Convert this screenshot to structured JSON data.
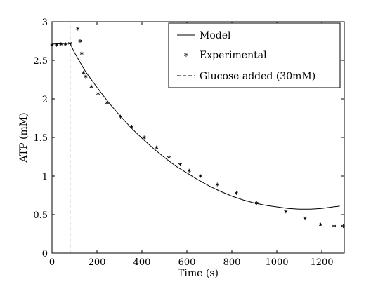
{
  "chart_data": {
    "type": "line",
    "xlabel": "Time (s)",
    "ylabel": "ATP (mM)",
    "xlim": [
      0,
      1300
    ],
    "ylim": [
      0,
      3
    ],
    "xticks": [
      0,
      200,
      400,
      600,
      800,
      1000,
      1200
    ],
    "yticks": [
      0,
      0.5,
      1,
      1.5,
      2,
      2.5,
      3
    ],
    "xtick_labels": [
      "0",
      "200",
      "400",
      "600",
      "800",
      "1000",
      "1200"
    ],
    "ytick_labels": [
      "0",
      "0.5",
      "1",
      "1.5",
      "2",
      "2.5",
      "3"
    ],
    "grid": false,
    "legend_position": "top-right",
    "series": [
      {
        "name": "Model",
        "style": "solid-line",
        "color": "#000000",
        "x": [
          0,
          80,
          100,
          150,
          200,
          250,
          300,
          350,
          400,
          450,
          500,
          550,
          600,
          650,
          700,
          750,
          800,
          850,
          900,
          950,
          1000,
          1050,
          1100,
          1150,
          1200,
          1250,
          1280
        ],
        "y": [
          2.71,
          2.72,
          2.6,
          2.35,
          2.15,
          1.96,
          1.79,
          1.63,
          1.49,
          1.36,
          1.24,
          1.13,
          1.04,
          0.95,
          0.87,
          0.8,
          0.74,
          0.69,
          0.65,
          0.62,
          0.6,
          0.58,
          0.57,
          0.57,
          0.58,
          0.6,
          0.61
        ]
      },
      {
        "name": "Experimental",
        "style": "asterisk-markers",
        "color": "#000000",
        "x": [
          0,
          20,
          40,
          60,
          80,
          115,
          125,
          132,
          140,
          150,
          175,
          205,
          245,
          305,
          355,
          410,
          465,
          520,
          570,
          610,
          660,
          735,
          820,
          910,
          1040,
          1125,
          1195,
          1255,
          1295
        ],
        "y": [
          2.7,
          2.7,
          2.71,
          2.71,
          2.72,
          2.91,
          2.75,
          2.59,
          2.34,
          2.29,
          2.16,
          2.07,
          1.95,
          1.77,
          1.64,
          1.5,
          1.37,
          1.24,
          1.15,
          1.07,
          1.0,
          0.89,
          0.78,
          0.65,
          0.54,
          0.45,
          0.37,
          0.35,
          0.35
        ]
      },
      {
        "name": "Glucose added (30mM)",
        "style": "dashed-vertical-line",
        "color": "#000000",
        "x": [
          80,
          80
        ],
        "y": [
          0,
          3
        ]
      }
    ]
  }
}
